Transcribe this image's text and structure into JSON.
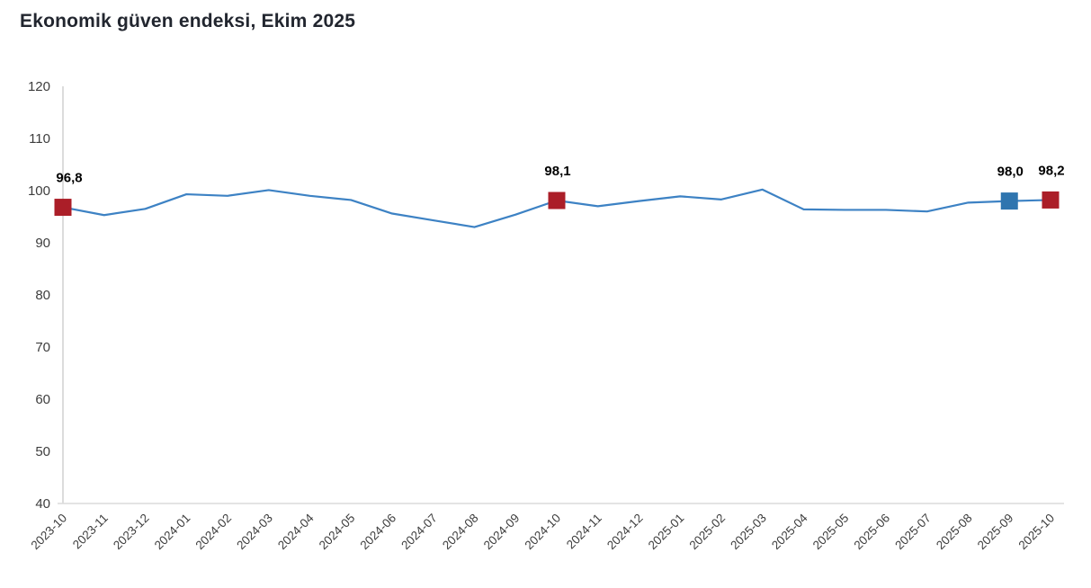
{
  "title": "Ekonomik güven endeksi, Ekim 2025",
  "chart_data": {
    "type": "line",
    "title": "Ekonomik güven endeksi, Ekim 2025",
    "xlabel": "",
    "ylabel": "",
    "ylim": [
      40,
      120
    ],
    "yticks": [
      40,
      50,
      60,
      70,
      80,
      90,
      100,
      110,
      120
    ],
    "grid": "none",
    "legend": "none",
    "x": [
      "2023-10",
      "2023-11",
      "2023-12",
      "2024-01",
      "2024-02",
      "2024-03",
      "2024-04",
      "2024-05",
      "2024-06",
      "2024-07",
      "2024-08",
      "2024-09",
      "2024-10",
      "2024-11",
      "2024-12",
      "2025-01",
      "2025-02",
      "2025-03",
      "2025-04",
      "2025-05",
      "2025-06",
      "2025-07",
      "2025-08",
      "2025-09",
      "2025-10"
    ],
    "series": [
      {
        "name": "Ekonomik güven endeksi",
        "values": [
          96.8,
          95.3,
          96.5,
          99.3,
          99.0,
          100.1,
          99.0,
          98.2,
          95.6,
          94.3,
          93.0,
          95.4,
          98.1,
          97.0,
          98.0,
          98.9,
          98.3,
          100.2,
          96.4,
          96.3,
          96.3,
          96.0,
          97.7,
          98.0,
          98.2
        ]
      }
    ],
    "annotated_points": [
      {
        "x": "2023-10",
        "value": 96.8,
        "label": "96,8",
        "marker": "square",
        "marker_color": "#AB1E28"
      },
      {
        "x": "2024-10",
        "value": 98.1,
        "label": "98,1",
        "marker": "square",
        "marker_color": "#AB1E28"
      },
      {
        "x": "2025-09",
        "value": 98.0,
        "label": "98,0",
        "marker": "square",
        "marker_color": "#2F75AF"
      },
      {
        "x": "2025-10",
        "value": 98.2,
        "label": "98,2",
        "marker": "square",
        "marker_color": "#AB1E28"
      }
    ],
    "colors": {
      "line": "#3D82C4",
      "marker_red": "#AB1E28",
      "marker_blue": "#2F75AF",
      "axis_line": "#DCDCDC",
      "tick_text": "#3D3D3D",
      "point_label_text": "#000000",
      "title_text": "#22262F"
    }
  }
}
